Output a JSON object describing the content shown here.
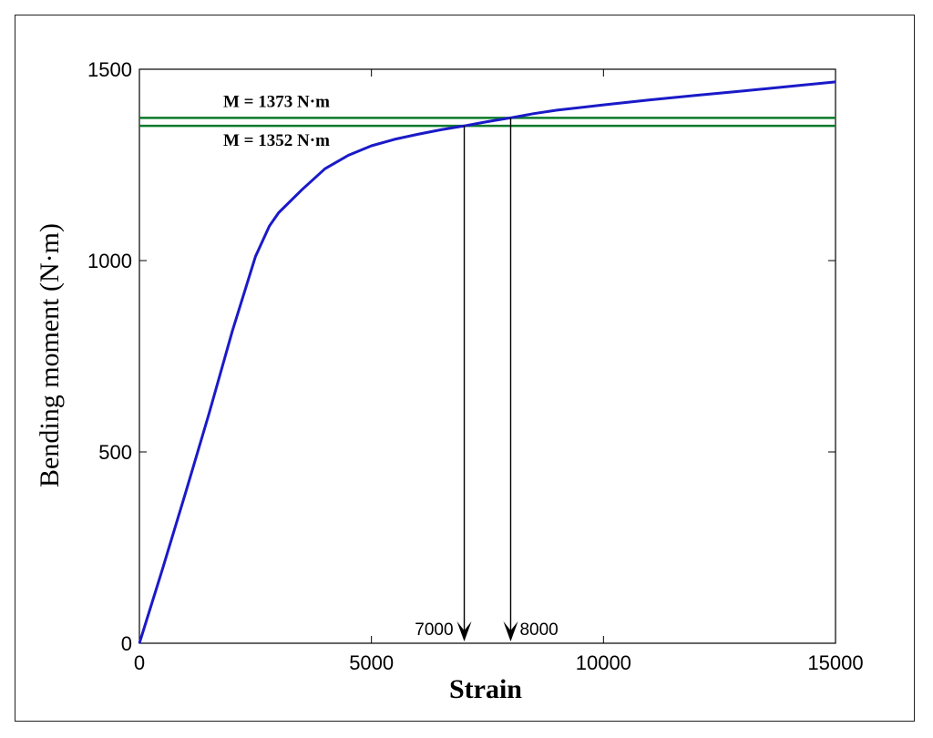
{
  "chart_data": {
    "type": "line",
    "xlabel": "Strain",
    "ylabel": "Bending moment (N·m)",
    "xlim": [
      0,
      15000
    ],
    "ylim": [
      0,
      1500
    ],
    "xticks": [
      0,
      5000,
      10000,
      15000
    ],
    "yticks": [
      0,
      500,
      1000,
      1500
    ],
    "grid": false,
    "series": [
      {
        "color": "#1a1ac8",
        "x": [
          0,
          500,
          1000,
          1500,
          2000,
          2500,
          2800,
          3000,
          3500,
          4000,
          4500,
          5000,
          5500,
          6000,
          6500,
          7000,
          7500,
          8000,
          8500,
          9000,
          10000,
          11000,
          12000,
          13000,
          14000,
          15000
        ],
        "y": [
          0,
          195,
          395,
          600,
          815,
          1010,
          1090,
          1125,
          1185,
          1240,
          1275,
          1300,
          1317,
          1330,
          1342,
          1352,
          1363,
          1373,
          1384,
          1393,
          1407,
          1420,
          1432,
          1443,
          1455,
          1467
        ]
      }
    ],
    "hlines": [
      {
        "y": 1373,
        "label": "M = 1373 N·m",
        "color": "#0b7a2a"
      },
      {
        "y": 1352,
        "label": "M = 1352 N·m",
        "color": "#0b7a2a"
      }
    ],
    "vlines": [
      {
        "x": 7000,
        "label": "7000",
        "color": "#000000"
      },
      {
        "x": 8000,
        "label": "8000",
        "color": "#000000"
      }
    ]
  }
}
